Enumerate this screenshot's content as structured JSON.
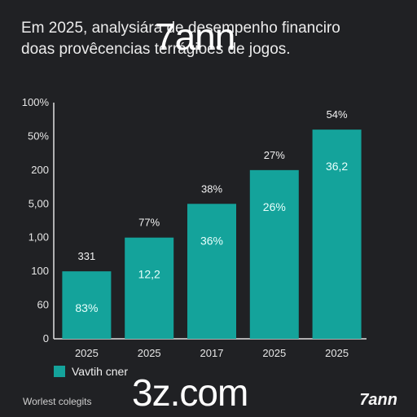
{
  "title": {
    "line1": "Em 2025, analysiára de desempenho financiro",
    "line2": "doas provêcencias terrágioes de jogos."
  },
  "watermarks": {
    "top": "7ann",
    "bottom": "3z.com"
  },
  "legend_label": "Vavtih cner",
  "footer": {
    "left": "Worlest colegits",
    "right": "7ann"
  },
  "colors": {
    "bar": "#14a39b",
    "background": "#202124",
    "axis": "#e0e0e0"
  },
  "chart_data": {
    "type": "bar",
    "title": "",
    "xlabel": "",
    "ylabel": "",
    "y_tick_labels": [
      "0",
      "60",
      "100",
      "1,00",
      "5,00",
      "200",
      "50%",
      "100%"
    ],
    "categories": [
      "2025",
      "2025",
      "2017",
      "2025",
      "2025"
    ],
    "values": [
      2,
      3,
      4,
      5,
      6.2
    ],
    "ylim": [
      0,
      7
    ],
    "label_above": [
      "331",
      "77%",
      "38%",
      "27%",
      "54%"
    ],
    "label_inside": [
      "83%",
      "12,2",
      "36%",
      "26%",
      "36,2"
    ],
    "legend": "bottom-left",
    "grid": false
  }
}
